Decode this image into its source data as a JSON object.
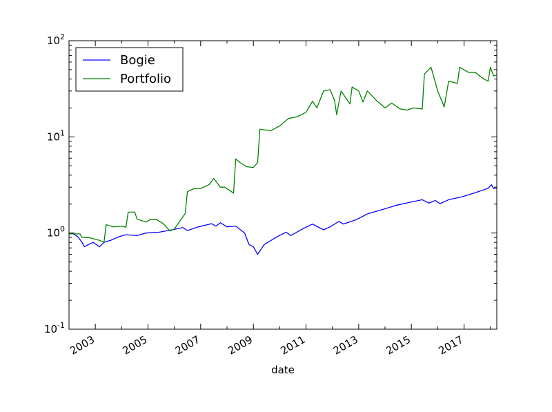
{
  "chart_data": {
    "type": "line",
    "title": "",
    "xlabel": "date",
    "ylabel": "",
    "yscale": "log",
    "ylim": [
      0.1,
      100
    ],
    "xlim": [
      "2002-01-01",
      "2018-03-31"
    ],
    "grid": false,
    "legend_position": "top-left",
    "x_ticks": [
      "2003",
      "2005",
      "2007",
      "2009",
      "2011",
      "2013",
      "2015",
      "2017"
    ],
    "y_ticks": [
      {
        "value": 0.1,
        "base": "10",
        "exp": "-1"
      },
      {
        "value": 1,
        "base": "10",
        "exp": "0"
      },
      {
        "value": 10,
        "base": "10",
        "exp": "1"
      },
      {
        "value": 100,
        "base": "10",
        "exp": "2"
      }
    ],
    "series": [
      {
        "name": "Bogie",
        "color": "#0000ff",
        "points": [
          [
            "2002-01-01",
            1.0
          ],
          [
            "2002-03-01",
            0.98
          ],
          [
            "2002-05-01",
            0.92
          ],
          [
            "2002-07-01",
            0.8
          ],
          [
            "2002-08-01",
            0.72
          ],
          [
            "2002-10-01",
            0.76
          ],
          [
            "2002-12-01",
            0.8
          ],
          [
            "2003-03-01",
            0.72
          ],
          [
            "2003-05-01",
            0.8
          ],
          [
            "2003-08-01",
            0.84
          ],
          [
            "2003-12-01",
            0.92
          ],
          [
            "2004-03-01",
            0.96
          ],
          [
            "2004-08-01",
            0.94
          ],
          [
            "2004-12-01",
            1.0
          ],
          [
            "2005-06-01",
            1.02
          ],
          [
            "2005-12-01",
            1.08
          ],
          [
            "2006-05-01",
            1.14
          ],
          [
            "2006-07-01",
            1.06
          ],
          [
            "2006-12-01",
            1.16
          ],
          [
            "2007-06-01",
            1.25
          ],
          [
            "2007-08-01",
            1.18
          ],
          [
            "2007-10-01",
            1.28
          ],
          [
            "2008-01-01",
            1.16
          ],
          [
            "2008-05-01",
            1.18
          ],
          [
            "2008-09-01",
            1.0
          ],
          [
            "2008-11-01",
            0.76
          ],
          [
            "2009-01-01",
            0.72
          ],
          [
            "2009-03-01",
            0.6
          ],
          [
            "2009-06-01",
            0.76
          ],
          [
            "2009-12-01",
            0.92
          ],
          [
            "2010-04-01",
            1.02
          ],
          [
            "2010-06-01",
            0.94
          ],
          [
            "2010-12-01",
            1.12
          ],
          [
            "2011-04-01",
            1.24
          ],
          [
            "2011-09-01",
            1.08
          ],
          [
            "2011-12-01",
            1.16
          ],
          [
            "2012-04-01",
            1.32
          ],
          [
            "2012-06-01",
            1.24
          ],
          [
            "2012-12-01",
            1.38
          ],
          [
            "2013-05-01",
            1.58
          ],
          [
            "2013-12-01",
            1.76
          ],
          [
            "2014-06-01",
            1.94
          ],
          [
            "2014-12-01",
            2.08
          ],
          [
            "2015-06-01",
            2.22
          ],
          [
            "2015-09-01",
            2.05
          ],
          [
            "2015-12-01",
            2.18
          ],
          [
            "2016-02-01",
            2.02
          ],
          [
            "2016-06-01",
            2.22
          ],
          [
            "2016-12-01",
            2.38
          ],
          [
            "2017-06-01",
            2.62
          ],
          [
            "2017-12-01",
            2.92
          ],
          [
            "2018-01-15",
            3.18
          ],
          [
            "2018-02-15",
            2.9
          ],
          [
            "2018-03-31",
            2.95
          ]
        ]
      },
      {
        "name": "Portfolio",
        "color": "#008000",
        "points": [
          [
            "2002-01-01",
            0.98
          ],
          [
            "2002-06-01",
            0.98
          ],
          [
            "2002-07-01",
            0.9
          ],
          [
            "2002-10-01",
            0.9
          ],
          [
            "2003-01-01",
            0.86
          ],
          [
            "2003-03-01",
            0.84
          ],
          [
            "2003-05-01",
            0.8
          ],
          [
            "2003-06-01",
            1.22
          ],
          [
            "2003-09-01",
            1.16
          ],
          [
            "2004-01-01",
            1.18
          ],
          [
            "2004-03-01",
            1.15
          ],
          [
            "2004-04-01",
            1.65
          ],
          [
            "2004-07-01",
            1.65
          ],
          [
            "2004-08-01",
            1.4
          ],
          [
            "2004-12-01",
            1.3
          ],
          [
            "2005-02-01",
            1.38
          ],
          [
            "2005-05-01",
            1.38
          ],
          [
            "2005-08-01",
            1.25
          ],
          [
            "2005-11-01",
            1.05
          ],
          [
            "2006-01-01",
            1.1
          ],
          [
            "2006-06-01",
            1.6
          ],
          [
            "2006-07-01",
            2.7
          ],
          [
            "2006-10-01",
            2.9
          ],
          [
            "2007-01-01",
            2.9
          ],
          [
            "2007-05-01",
            3.2
          ],
          [
            "2007-07-01",
            3.7
          ],
          [
            "2007-10-01",
            3.0
          ],
          [
            "2007-12-01",
            3.0
          ],
          [
            "2008-04-01",
            2.6
          ],
          [
            "2008-05-01",
            5.9
          ],
          [
            "2008-07-01",
            5.4
          ],
          [
            "2008-10-01",
            4.9
          ],
          [
            "2009-01-01",
            4.8
          ],
          [
            "2009-03-01",
            5.4
          ],
          [
            "2009-04-01",
            12.0
          ],
          [
            "2009-09-01",
            11.6
          ],
          [
            "2010-01-01",
            13.0
          ],
          [
            "2010-05-01",
            15.5
          ],
          [
            "2010-09-01",
            16.2
          ],
          [
            "2011-01-01",
            18.0
          ],
          [
            "2011-04-01",
            23.5
          ],
          [
            "2011-06-01",
            20.0
          ],
          [
            "2011-09-01",
            30.0
          ],
          [
            "2011-12-01",
            31.0
          ],
          [
            "2012-02-01",
            24.0
          ],
          [
            "2012-03-01",
            17.0
          ],
          [
            "2012-05-01",
            30.0
          ],
          [
            "2012-09-01",
            22.0
          ],
          [
            "2012-10-01",
            33.0
          ],
          [
            "2013-01-01",
            30.0
          ],
          [
            "2013-03-01",
            23.0
          ],
          [
            "2013-05-01",
            30.0
          ],
          [
            "2013-09-01",
            24.0
          ],
          [
            "2014-01-01",
            20.0
          ],
          [
            "2014-04-01",
            22.5
          ],
          [
            "2014-08-01",
            19.5
          ],
          [
            "2014-11-01",
            19.0
          ],
          [
            "2015-02-01",
            20.0
          ],
          [
            "2015-06-01",
            19.5
          ],
          [
            "2015-07-01",
            45.0
          ],
          [
            "2015-10-01",
            53.0
          ],
          [
            "2016-01-01",
            30.0
          ],
          [
            "2016-04-01",
            20.5
          ],
          [
            "2016-06-01",
            38.0
          ],
          [
            "2016-10-01",
            36.0
          ],
          [
            "2016-11-01",
            53.0
          ],
          [
            "2017-03-01",
            47.0
          ],
          [
            "2017-06-01",
            47.0
          ],
          [
            "2017-10-01",
            40.0
          ],
          [
            "2017-12-01",
            38.0
          ],
          [
            "2018-01-01",
            53.0
          ],
          [
            "2018-02-15",
            43.0
          ],
          [
            "2018-03-31",
            44.0
          ]
        ]
      }
    ]
  }
}
